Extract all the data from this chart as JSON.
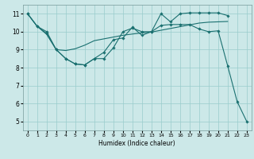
{
  "xlabel": "Humidex (Indice chaleur)",
  "bg_color": "#cce8e8",
  "grid_color": "#99cccc",
  "line_color": "#1a7070",
  "xlim": [
    -0.5,
    23.5
  ],
  "ylim": [
    4.5,
    11.5
  ],
  "xticks": [
    0,
    1,
    2,
    3,
    4,
    5,
    6,
    7,
    8,
    9,
    10,
    11,
    12,
    13,
    14,
    15,
    16,
    17,
    18,
    19,
    20,
    21,
    22,
    23
  ],
  "yticks": [
    5,
    6,
    7,
    8,
    9,
    10,
    11
  ],
  "line1_x": [
    0,
    1,
    2,
    3,
    4,
    5,
    6,
    7,
    8,
    9,
    10,
    11,
    12,
    13,
    14,
    15,
    16,
    17,
    18,
    19,
    20,
    21,
    22,
    23
  ],
  "line1_y": [
    11.0,
    10.3,
    10.0,
    9.0,
    8.5,
    8.2,
    8.15,
    8.5,
    8.5,
    9.1,
    10.0,
    10.2,
    10.0,
    10.0,
    10.35,
    10.4,
    10.4,
    10.4,
    10.15,
    10.0,
    10.05,
    8.1,
    6.1,
    5.0
  ],
  "line2_x": [
    0,
    1,
    2,
    3,
    4,
    5,
    6,
    7,
    8,
    9,
    10,
    11,
    12,
    13,
    14,
    15,
    16,
    17,
    18,
    19,
    20,
    21
  ],
  "line2_y": [
    11.0,
    10.3,
    9.85,
    9.0,
    8.95,
    9.05,
    9.25,
    9.5,
    9.6,
    9.7,
    9.8,
    9.87,
    9.93,
    9.98,
    10.08,
    10.18,
    10.28,
    10.38,
    10.48,
    10.53,
    10.55,
    10.57
  ],
  "line3_x": [
    0,
    1,
    2,
    3,
    4,
    5,
    6,
    7,
    8,
    9,
    10,
    11,
    12,
    13,
    14,
    15,
    16,
    17,
    18,
    19,
    20,
    21
  ],
  "line3_y": [
    11.0,
    10.3,
    9.9,
    9.0,
    8.5,
    8.2,
    8.15,
    8.5,
    8.85,
    9.55,
    9.65,
    10.25,
    9.8,
    10.0,
    11.0,
    10.55,
    11.0,
    11.05,
    11.05,
    11.05,
    11.05,
    10.9
  ]
}
